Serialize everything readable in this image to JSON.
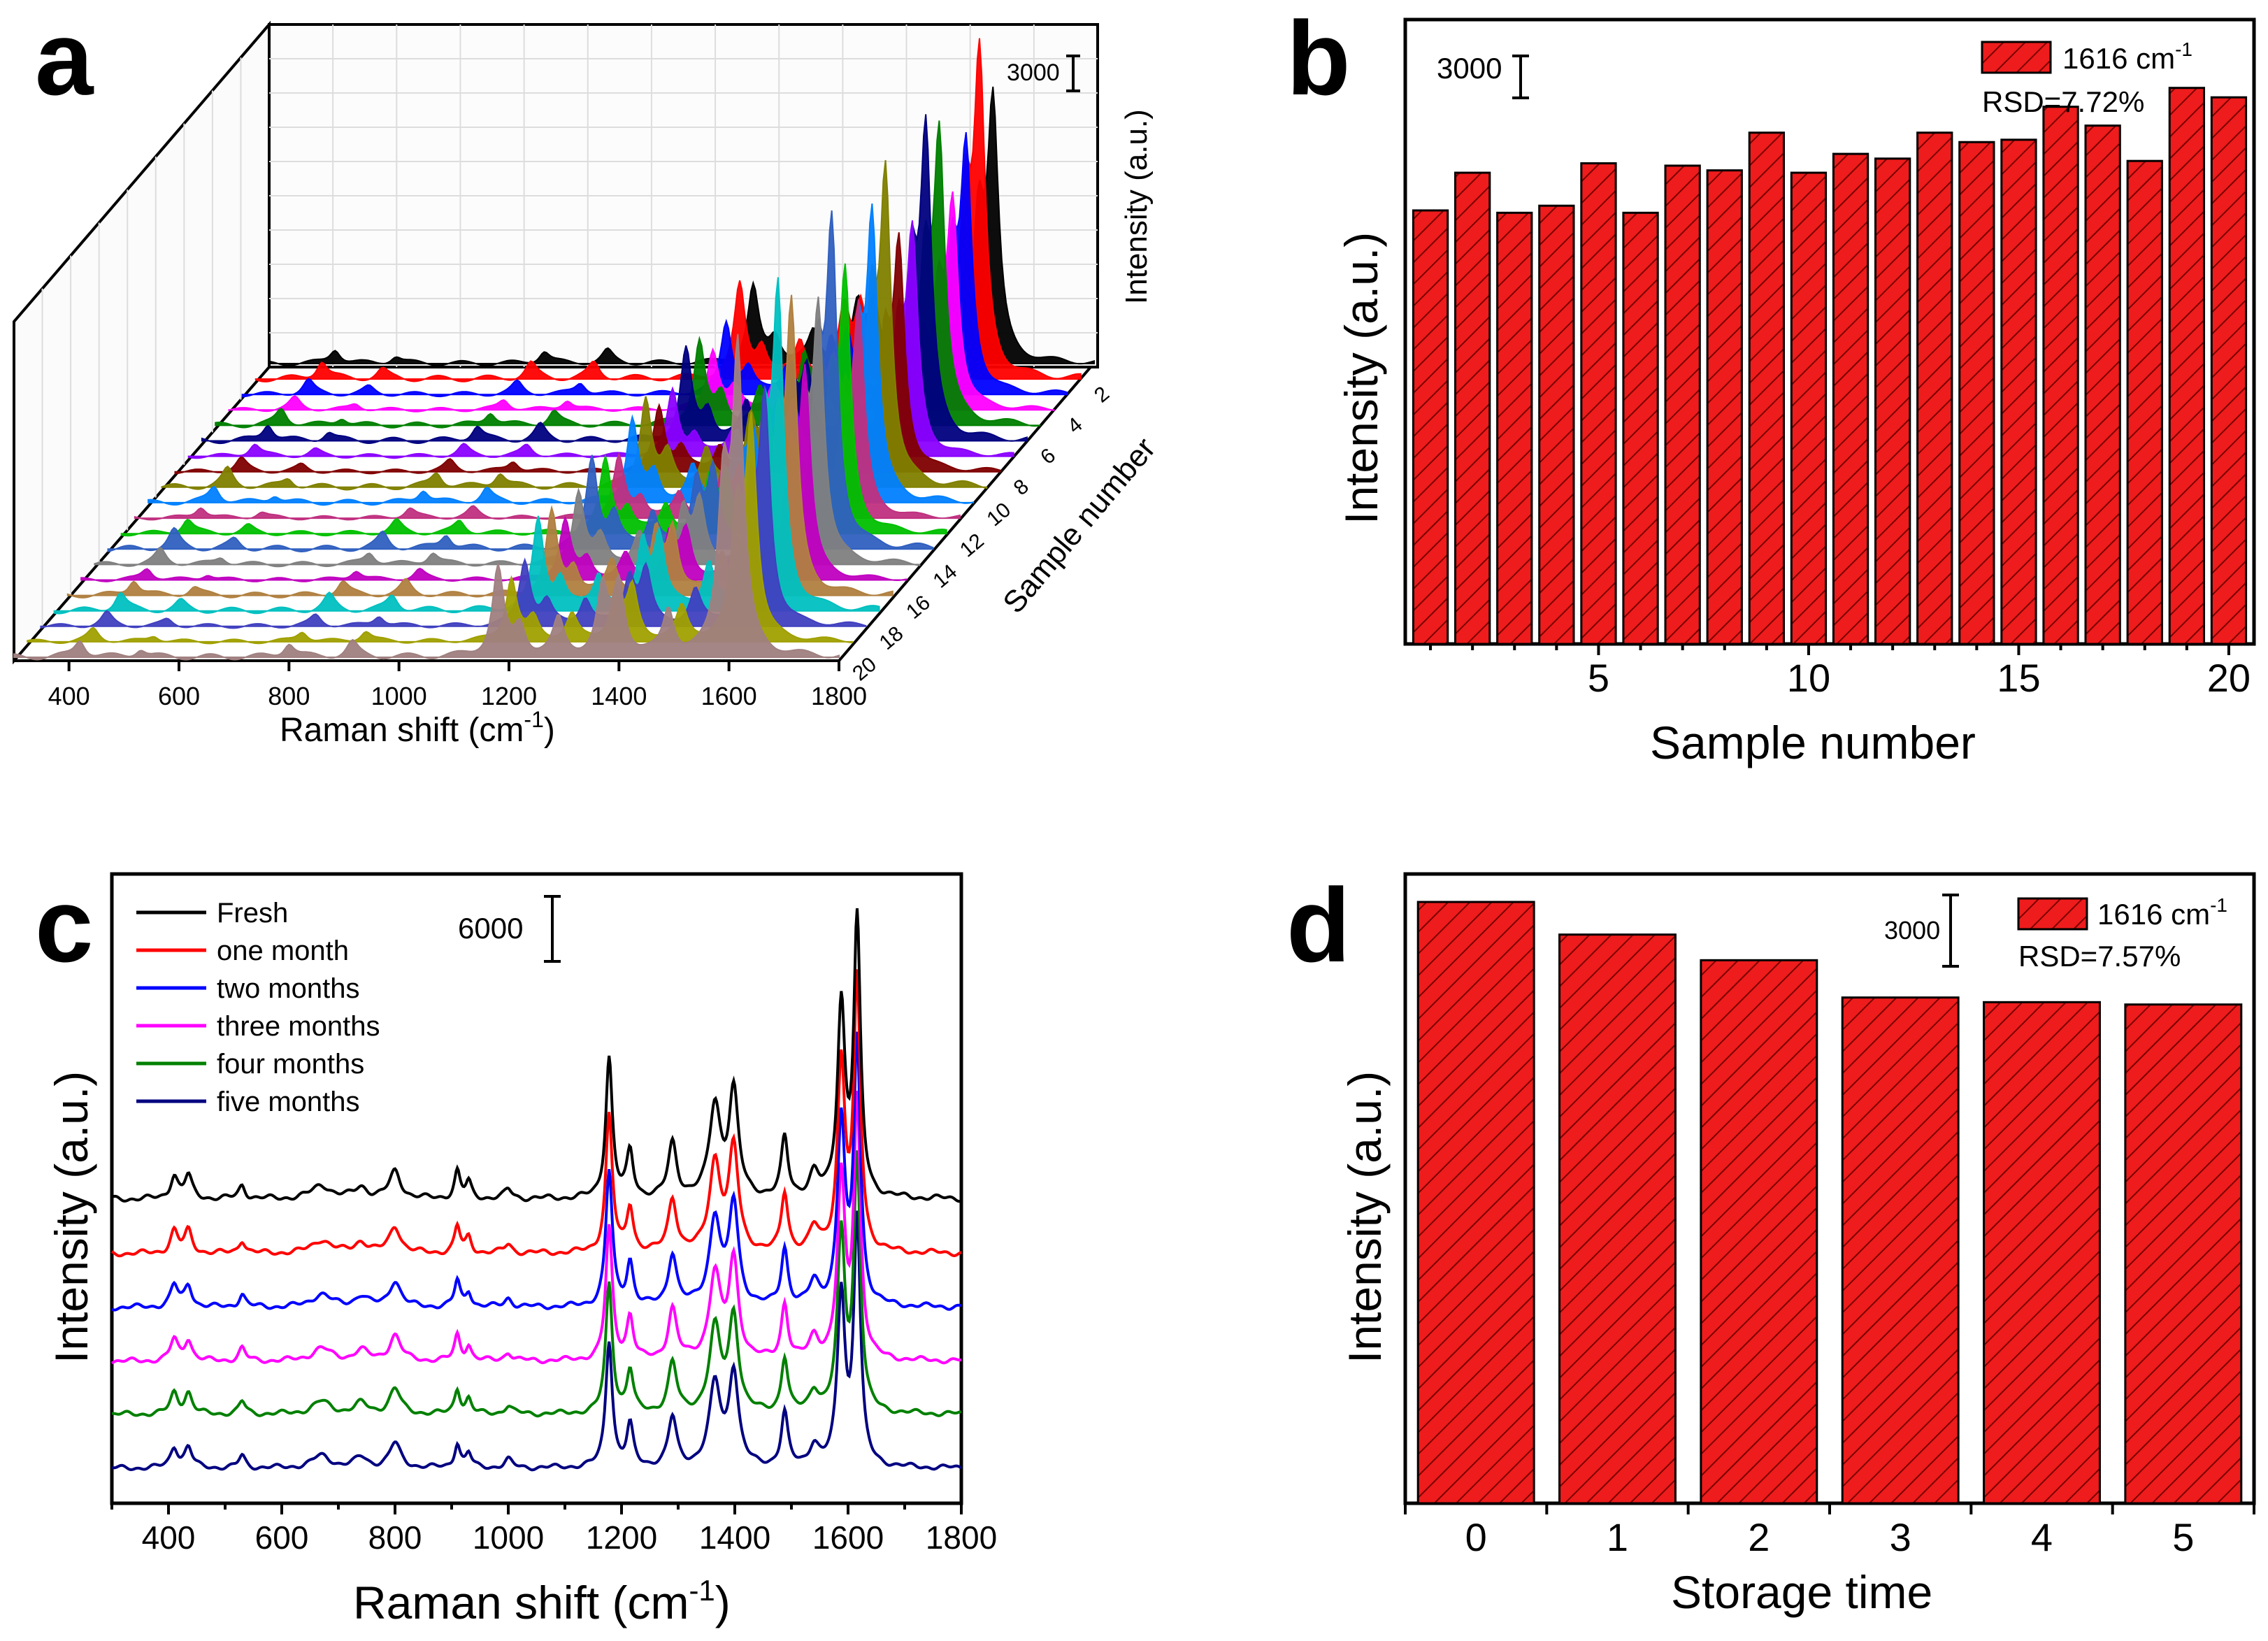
{
  "panels": {
    "a": {
      "letter": "a"
    },
    "b": {
      "letter": "b"
    },
    "c": {
      "letter": "c"
    },
    "d": {
      "letter": "d"
    }
  },
  "colors": {
    "bar_fill": "#ee1c1c",
    "bar_hatch": "#7a0000",
    "series_a": [
      "#000000",
      "#ff0000",
      "#0000ff",
      "#ff00ff",
      "#008000",
      "#000080",
      "#8b00ff",
      "#800000",
      "#808000",
      "#0080ff",
      "#c03080",
      "#00c000",
      "#3060c0",
      "#808080",
      "#c000c0",
      "#b08040",
      "#00c0c0",
      "#4040c0",
      "#a0a000",
      "#a08080"
    ],
    "series_c": [
      "#000000",
      "#ff0000",
      "#0000ff",
      "#ff00ff",
      "#008000",
      "#000080"
    ]
  },
  "chart_data": [
    {
      "id": "a",
      "type": "line",
      "title": "",
      "xlabel": "Raman shift (cm-1)",
      "ylabel": "Intensity (a.u.)",
      "zlabel": "Sample number",
      "xlim": [
        300,
        1800
      ],
      "xticks": [
        "400",
        "600",
        "800",
        "1000",
        "1200",
        "1400",
        "1600",
        "1800"
      ],
      "zticks": [
        "2",
        "4",
        "6",
        "8",
        "10",
        "12",
        "14",
        "16",
        "18",
        "20"
      ],
      "scale_bar": "3000",
      "series_count": 20,
      "peaks": [
        {
          "x": 420,
          "h": 0.06
        },
        {
          "x": 530,
          "h": 0.03
        },
        {
          "x": 800,
          "h": 0.05
        },
        {
          "x": 915,
          "h": 0.05
        },
        {
          "x": 1180,
          "h": 0.3
        },
        {
          "x": 1220,
          "h": 0.1
        },
        {
          "x": 1290,
          "h": 0.12
        },
        {
          "x": 1370,
          "h": 0.22
        },
        {
          "x": 1400,
          "h": 0.24
        },
        {
          "x": 1490,
          "h": 0.15
        },
        {
          "x": 1590,
          "h": 0.55
        },
        {
          "x": 1616,
          "h": 1.0
        }
      ]
    },
    {
      "id": "b",
      "type": "bar",
      "title": "",
      "xlabel": "Sample number",
      "ylabel": "Intensity (a.u.)",
      "xticks": [
        "5",
        "10",
        "15",
        "20"
      ],
      "categories": [
        1,
        2,
        3,
        4,
        5,
        6,
        7,
        8,
        9,
        10,
        11,
        12,
        13,
        14,
        15,
        16,
        17,
        18,
        19,
        20
      ],
      "values": [
        18400,
        20000,
        18300,
        18600,
        20400,
        18300,
        20300,
        20100,
        21700,
        20000,
        20800,
        20600,
        21700,
        21300,
        21400,
        22800,
        22000,
        20500,
        23600,
        23200
      ],
      "ylim": [
        0,
        26500
      ],
      "legend": "1616 cm-1",
      "annotation": "RSD=7.72%",
      "scale_bar": "3000"
    },
    {
      "id": "c",
      "type": "line",
      "title": "",
      "xlabel": "Raman shift (cm-1)",
      "ylabel": "Intensity (a.u.)",
      "xlim": [
        300,
        1800
      ],
      "xticks": [
        "400",
        "600",
        "800",
        "1000",
        "1200",
        "1400",
        "1600",
        "1800"
      ],
      "scale_bar": "6000",
      "series": [
        {
          "name": "Fresh"
        },
        {
          "name": "one month"
        },
        {
          "name": "two months"
        },
        {
          "name": "three months"
        },
        {
          "name": "four months"
        },
        {
          "name": "five months"
        }
      ],
      "peaks": [
        {
          "x": 410,
          "h": 0.05,
          "w": 8
        },
        {
          "x": 435,
          "h": 0.05,
          "w": 8
        },
        {
          "x": 530,
          "h": 0.03,
          "w": 7
        },
        {
          "x": 670,
          "h": 0.03,
          "w": 20
        },
        {
          "x": 740,
          "h": 0.025,
          "w": 14
        },
        {
          "x": 800,
          "h": 0.06,
          "w": 12
        },
        {
          "x": 910,
          "h": 0.06,
          "w": 6
        },
        {
          "x": 930,
          "h": 0.035,
          "w": 6
        },
        {
          "x": 1000,
          "h": 0.02,
          "w": 8
        },
        {
          "x": 1178,
          "h": 0.31,
          "w": 7
        },
        {
          "x": 1215,
          "h": 0.1,
          "w": 7
        },
        {
          "x": 1290,
          "h": 0.12,
          "w": 9
        },
        {
          "x": 1365,
          "h": 0.2,
          "w": 12
        },
        {
          "x": 1398,
          "h": 0.23,
          "w": 10
        },
        {
          "x": 1488,
          "h": 0.13,
          "w": 7
        },
        {
          "x": 1540,
          "h": 0.05,
          "w": 10
        },
        {
          "x": 1588,
          "h": 0.42,
          "w": 8
        },
        {
          "x": 1616,
          "h": 0.6,
          "w": 7
        }
      ]
    },
    {
      "id": "d",
      "type": "bar",
      "title": "",
      "xlabel": "Storage time",
      "ylabel": "Intensity (a.u.)",
      "categories": [
        "0",
        "1",
        "2",
        "3",
        "4",
        "5"
      ],
      "values": [
        25800,
        24400,
        23300,
        21700,
        21500,
        21400
      ],
      "ylim": [
        0,
        27000
      ],
      "legend": "1616 cm-1",
      "annotation": "RSD=7.57%",
      "scale_bar": "3000"
    }
  ]
}
